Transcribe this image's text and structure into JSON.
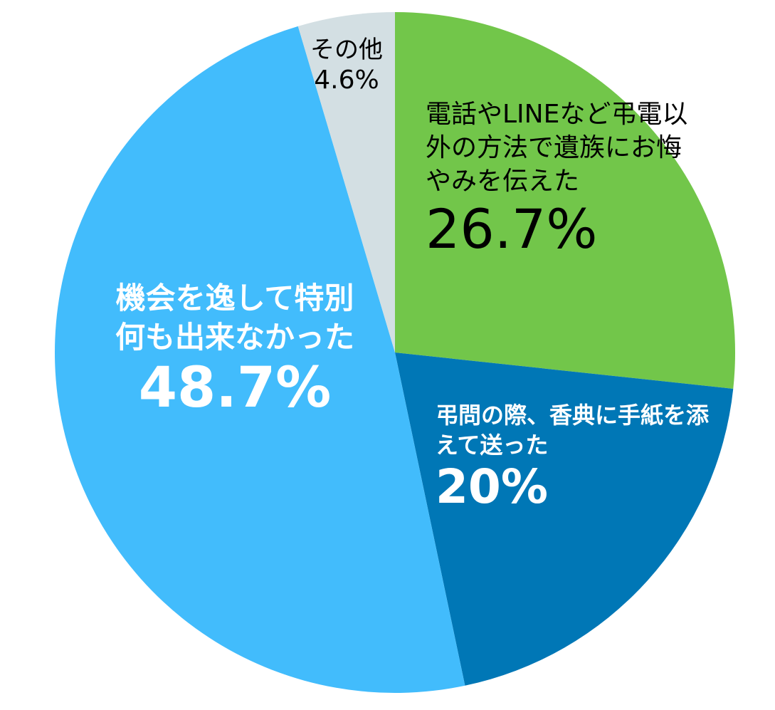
{
  "chart_data": {
    "type": "pie",
    "categories": [
      "電話やLINEなど弔電以外の方法で遺族にお悔やみを伝えた",
      "弔問の際、香典に手紙を添えて送った",
      "機会を逸して特別何も出来なかった",
      "その他"
    ],
    "values": [
      26.7,
      20,
      48.7,
      4.6
    ],
    "value_labels": [
      "26.7%",
      "20%",
      "48.7%",
      "4.6%"
    ],
    "colors": [
      "#72c64a",
      "#0077b6",
      "#42bcfc",
      "#d3dfe3"
    ],
    "label_colors": [
      "#000000",
      "#ffffff",
      "#ffffff",
      "#000000"
    ]
  }
}
